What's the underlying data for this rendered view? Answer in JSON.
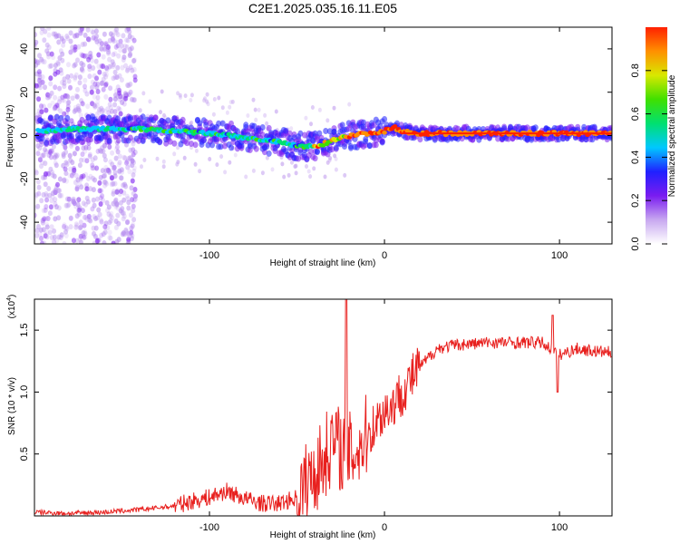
{
  "title": "C2E1.2025.035.16.11.E05",
  "chart_data": [
    {
      "type": "heatmap",
      "xlabel": "Height of straight line (km)",
      "ylabel": "Frequency (Hz)",
      "xlim": [
        -200,
        130
      ],
      "ylim": [
        -50,
        50
      ],
      "x_ticks": [
        -100,
        0,
        100
      ],
      "x_tick_labels": [
        "-100",
        "0",
        "100"
      ],
      "y_ticks": [
        -40,
        -20,
        0,
        20,
        40
      ],
      "y_tick_labels": [
        "-40",
        "-20",
        "0",
        "20",
        "40"
      ],
      "grid": false,
      "ridge": {
        "x": [
          -195,
          -180,
          -160,
          -140,
          -120,
          -100,
          -90,
          -80,
          -70,
          -60,
          -50,
          -45,
          -40,
          -35,
          -30,
          -25,
          -20,
          -10,
          0,
          5,
          10,
          20,
          40,
          60,
          80,
          100,
          130
        ],
        "y": [
          2,
          3,
          3,
          3,
          2,
          1,
          0,
          -1,
          -2,
          -3,
          -5,
          -5,
          -5,
          -4,
          -2,
          -1,
          0,
          1,
          2,
          4,
          2,
          1,
          1,
          1,
          1,
          1,
          1
        ]
      },
      "colorbar": {
        "label": "Normalized spectral amplitude",
        "range": [
          0,
          1
        ],
        "ticks": [
          0.0,
          0.2,
          0.4,
          0.6,
          0.8
        ],
        "tick_labels": [
          "0.0",
          "0.2",
          "0.4",
          "0.6",
          "0.8"
        ],
        "colormap": [
          "#ffffff",
          "#c8a8f0",
          "#7a1cf0",
          "#2020ff",
          "#00c8ff",
          "#00e070",
          "#40e000",
          "#d8e800",
          "#ff9000",
          "#ff2000"
        ]
      }
    },
    {
      "type": "line",
      "xlabel": "Height of straight line (km)",
      "ylabel": "SNR (10 * v/v)",
      "y_multiplier_label": "(x10",
      "y_multiplier_exp": "4",
      "y_multiplier_close": ")",
      "xlim": [
        -200,
        130
      ],
      "ylim": [
        0,
        1.75
      ],
      "x_ticks": [
        -100,
        0,
        100
      ],
      "x_tick_labels": [
        "-100",
        "0",
        "100"
      ],
      "y_ticks": [
        0.5,
        1.0,
        1.5
      ],
      "y_tick_labels": [
        "0.5",
        "1.0",
        "1.5"
      ],
      "grid": false,
      "series": [
        {
          "color": "#e8201e",
          "x": [
            -200,
            -180,
            -160,
            -140,
            -120,
            -110,
            -100,
            -90,
            -80,
            -70,
            -60,
            -50,
            -45,
            -40,
            -35,
            -30,
            -25,
            -20,
            -15,
            -10,
            -5,
            0,
            5,
            10,
            15,
            20,
            30,
            40,
            60,
            80,
            90,
            95,
            100,
            110,
            120,
            130
          ],
          "y": [
            0.03,
            0.02,
            0.03,
            0.05,
            0.08,
            0.12,
            0.15,
            0.2,
            0.14,
            0.1,
            0.1,
            0.15,
            0.25,
            0.35,
            0.45,
            0.6,
            0.55,
            0.5,
            0.55,
            0.65,
            0.75,
            0.85,
            0.9,
            1.0,
            1.1,
            1.2,
            1.35,
            1.38,
            1.4,
            1.4,
            1.4,
            1.35,
            1.3,
            1.35,
            1.33,
            1.32
          ]
        }
      ]
    }
  ]
}
